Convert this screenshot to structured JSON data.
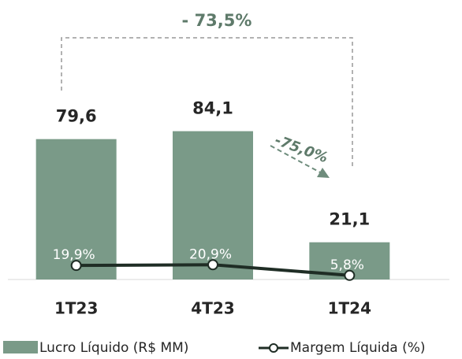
{
  "chart_data": {
    "type": "bar",
    "categories": [
      "1T23",
      "4T23",
      "1T24"
    ],
    "series": [
      {
        "name": "Lucro Líquido (R$ MM)",
        "type": "bar",
        "color": "#7a9a88",
        "values": [
          79.6,
          84.1,
          21.1
        ],
        "value_labels": [
          "79,6",
          "84,1",
          "21,1"
        ]
      },
      {
        "name": "Margem Líquida (%)",
        "type": "line",
        "axis": "y2",
        "color": "#1f2d25",
        "values": [
          19.9,
          20.9,
          5.8
        ],
        "value_labels": [
          "19,9%",
          "20,9%",
          "5,8%"
        ]
      }
    ],
    "ylim": [
      0,
      100
    ],
    "y2lim": [
      0,
      250
    ],
    "annotations": [
      "- 73,5%",
      "-75,0%"
    ]
  }
}
